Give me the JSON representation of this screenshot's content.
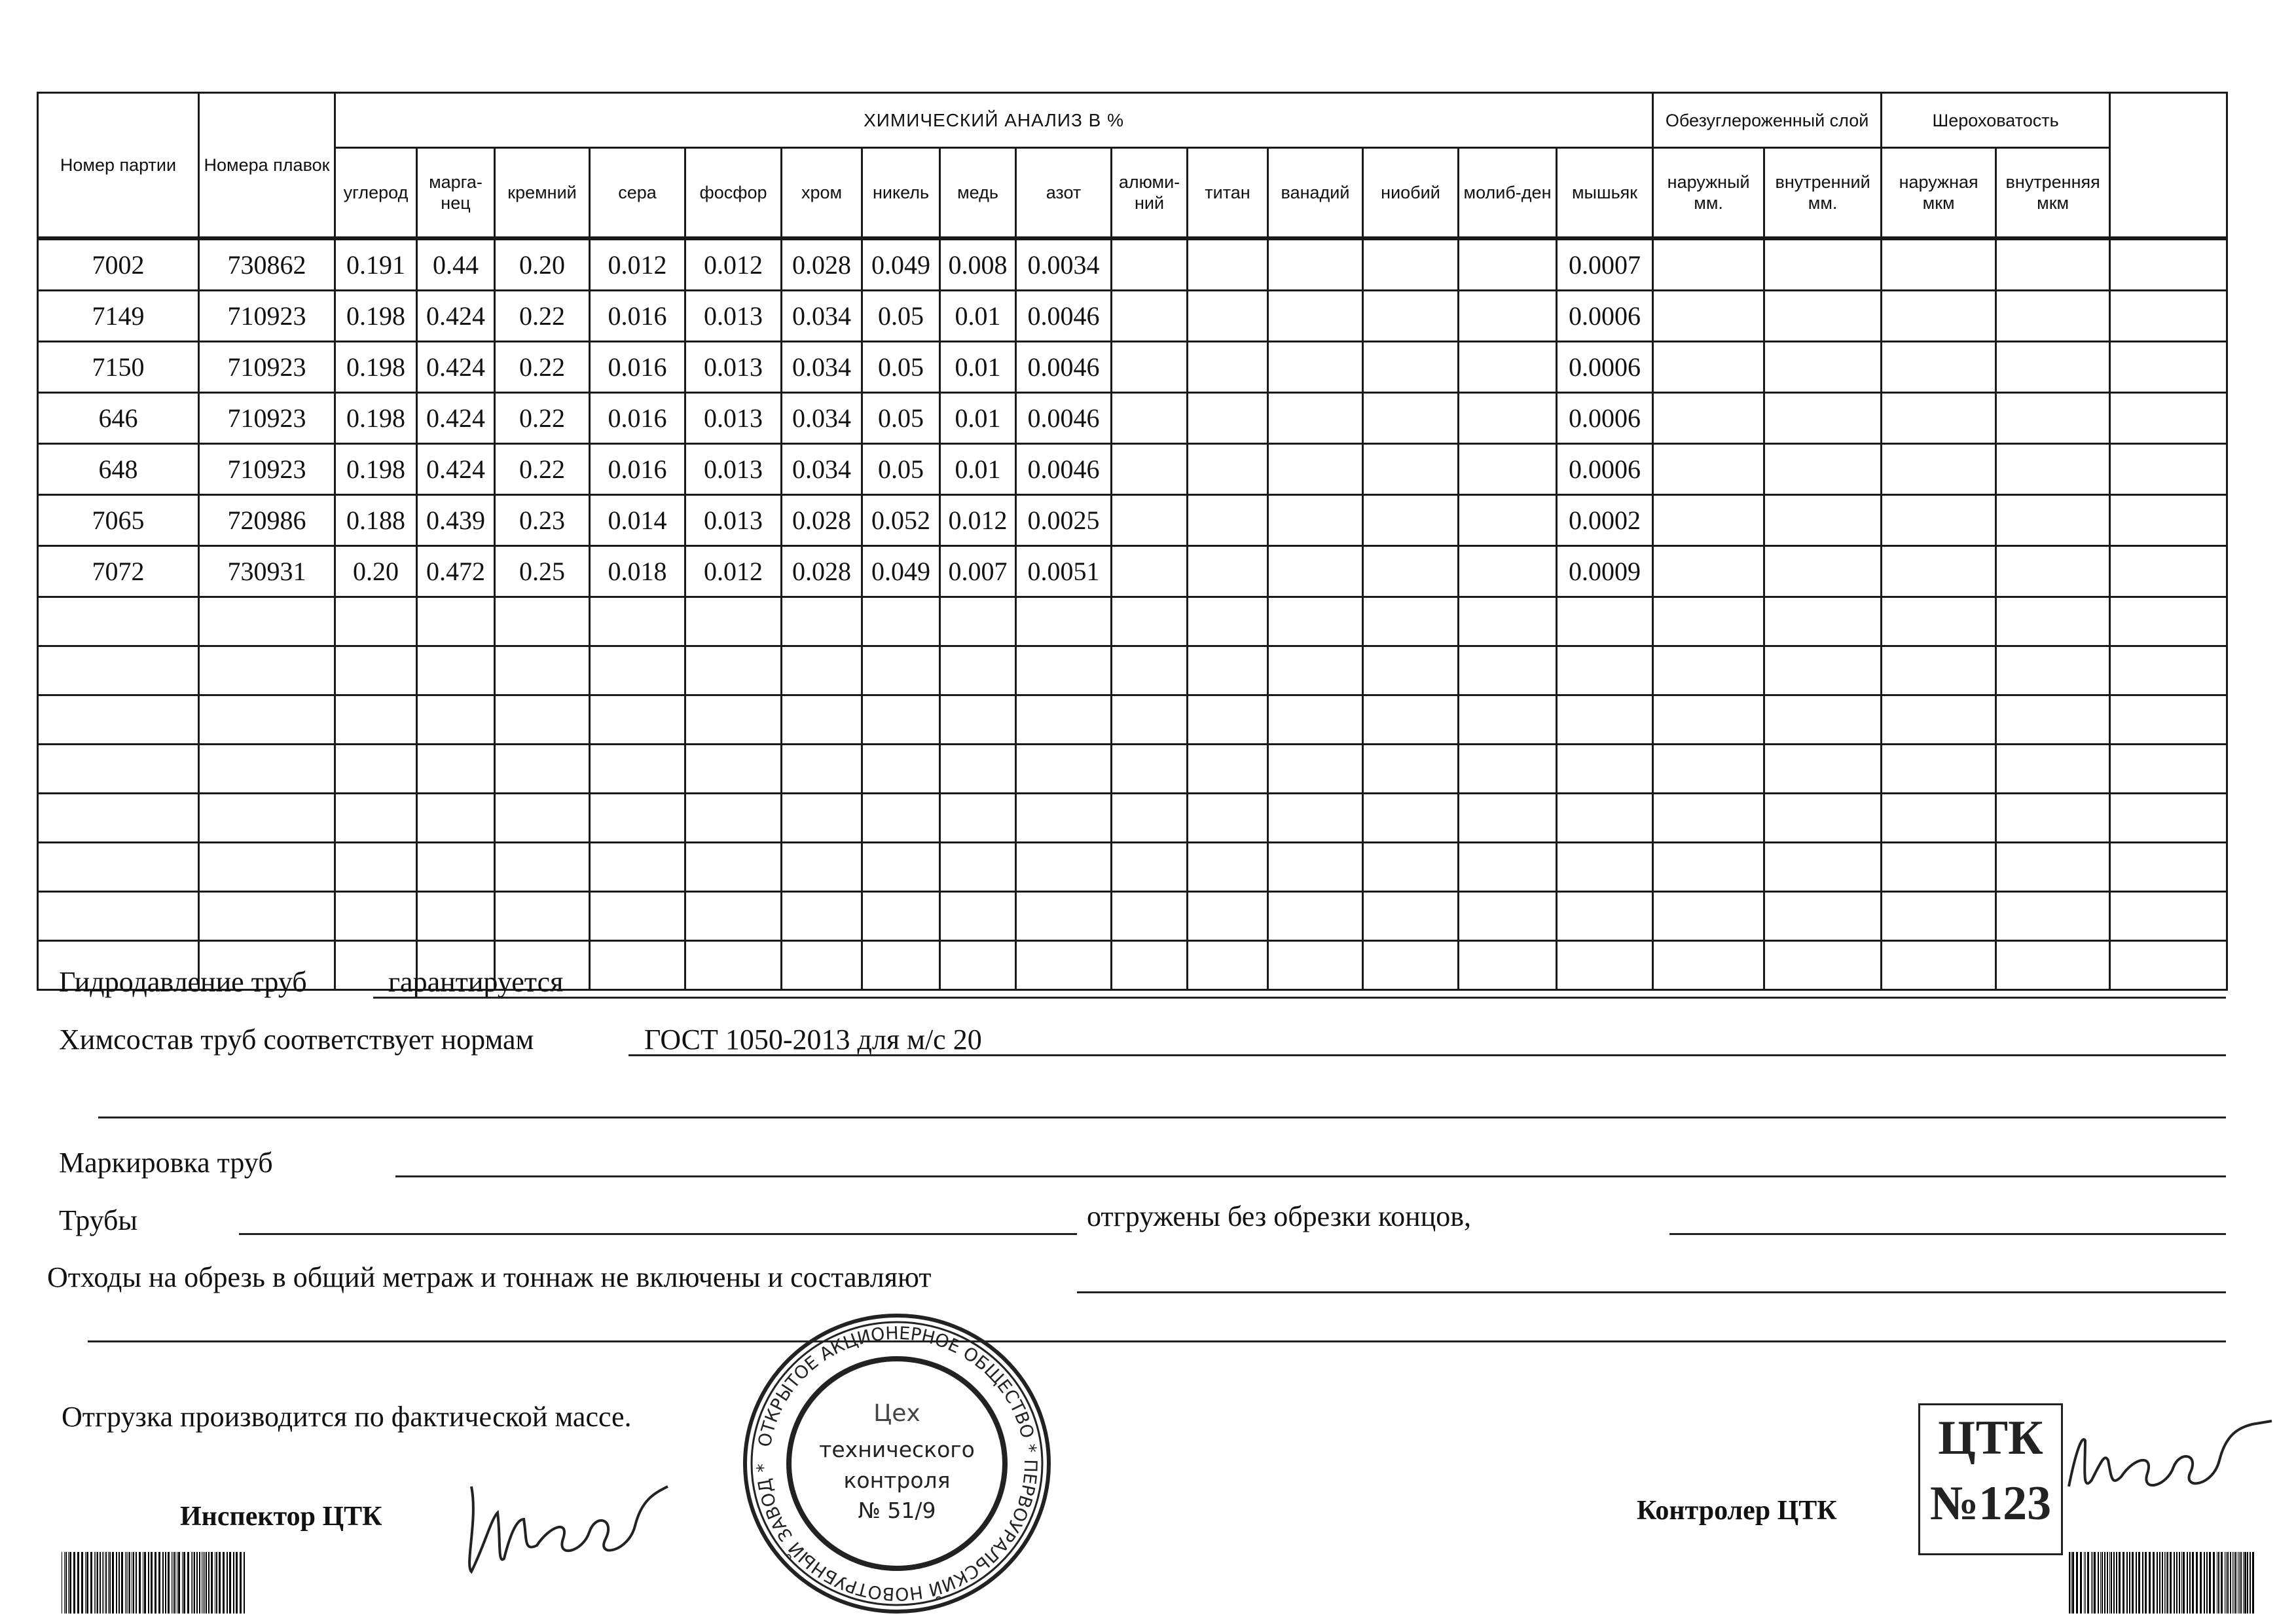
{
  "table": {
    "col_party": "Номер партии",
    "col_melt": "Номера плавок",
    "chem_title": "ХИМИЧЕСКИЙ АНАЛИЗ  В  %",
    "chem_cols": [
      "углерод",
      "марга-нец",
      "кремний",
      "сера",
      "фосфор",
      "хром",
      "никель",
      "медь",
      "азот",
      "алюми-ний",
      "титан",
      "ванадий",
      "ниобий",
      "молиб-ден",
      "мышьяк"
    ],
    "decarb_title": "Обезуглероженный слой",
    "decarb_cols": [
      "наружный мм.",
      "внутренний мм."
    ],
    "rough_title": "Шероховатость",
    "rough_cols": [
      "наружная мкм",
      "внутренняя мкм"
    ],
    "rows": [
      {
        "party": "7002",
        "melt": "730862",
        "chem": [
          "0.191",
          "0.44",
          "0.20",
          "0.012",
          "0.012",
          "0.028",
          "0.049",
          "0.008",
          "0.0034",
          "",
          "",
          "",
          "",
          "",
          "0.0007"
        ]
      },
      {
        "party": "7149",
        "melt": "710923",
        "chem": [
          "0.198",
          "0.424",
          "0.22",
          "0.016",
          "0.013",
          "0.034",
          "0.05",
          "0.01",
          "0.0046",
          "",
          "",
          "",
          "",
          "",
          "0.0006"
        ]
      },
      {
        "party": "7150",
        "melt": "710923",
        "chem": [
          "0.198",
          "0.424",
          "0.22",
          "0.016",
          "0.013",
          "0.034",
          "0.05",
          "0.01",
          "0.0046",
          "",
          "",
          "",
          "",
          "",
          "0.0006"
        ]
      },
      {
        "party": "646",
        "melt": "710923",
        "chem": [
          "0.198",
          "0.424",
          "0.22",
          "0.016",
          "0.013",
          "0.034",
          "0.05",
          "0.01",
          "0.0046",
          "",
          "",
          "",
          "",
          "",
          "0.0006"
        ]
      },
      {
        "party": "648",
        "melt": "710923",
        "chem": [
          "0.198",
          "0.424",
          "0.22",
          "0.016",
          "0.013",
          "0.034",
          "0.05",
          "0.01",
          "0.0046",
          "",
          "",
          "",
          "",
          "",
          "0.0006"
        ]
      },
      {
        "party": "7065",
        "melt": "720986",
        "chem": [
          "0.188",
          "0.439",
          "0.23",
          "0.014",
          "0.013",
          "0.028",
          "0.052",
          "0.012",
          "0.0025",
          "",
          "",
          "",
          "",
          "",
          "0.0002"
        ]
      },
      {
        "party": "7072",
        "melt": "730931",
        "chem": [
          "0.20",
          "0.472",
          "0.25",
          "0.018",
          "0.012",
          "0.028",
          "0.049",
          "0.007",
          "0.0051",
          "",
          "",
          "",
          "",
          "",
          "0.0009"
        ]
      }
    ]
  },
  "form": {
    "hydro_label": "Гидродавление труб",
    "hydro_value": "гарантируется",
    "chem_label": "Химсостав труб соответствует нормам",
    "chem_value": "ГОСТ 1050-2013 для м/с 20",
    "marking_label": "Маркировка труб",
    "pipes_label": "Трубы",
    "shipped_label": "отгружены без обрезки концов,",
    "waste_label": "Отходы на обрезь в общий метраж и тоннаж не включены и составляют",
    "shipping_note": "Отгрузка производится по фактической массе.",
    "inspector_label": "Инспектор ЦТК",
    "controller_label": "Контролер ЦТК"
  },
  "stamp": {
    "ring_text": "ОТКРЫТОЕ АКЦИОНЕРНОЕ ОБЩЕСТВО * ПЕРВОУРАЛЬСКИЙ НОВОТРУБНЫЙ ЗАВОД *",
    "center_lines": [
      "Цех",
      "технического",
      "контроля",
      "№ 51/9"
    ]
  },
  "ctk_stamp": {
    "line1": "ЦТК",
    "line2": "№123"
  }
}
